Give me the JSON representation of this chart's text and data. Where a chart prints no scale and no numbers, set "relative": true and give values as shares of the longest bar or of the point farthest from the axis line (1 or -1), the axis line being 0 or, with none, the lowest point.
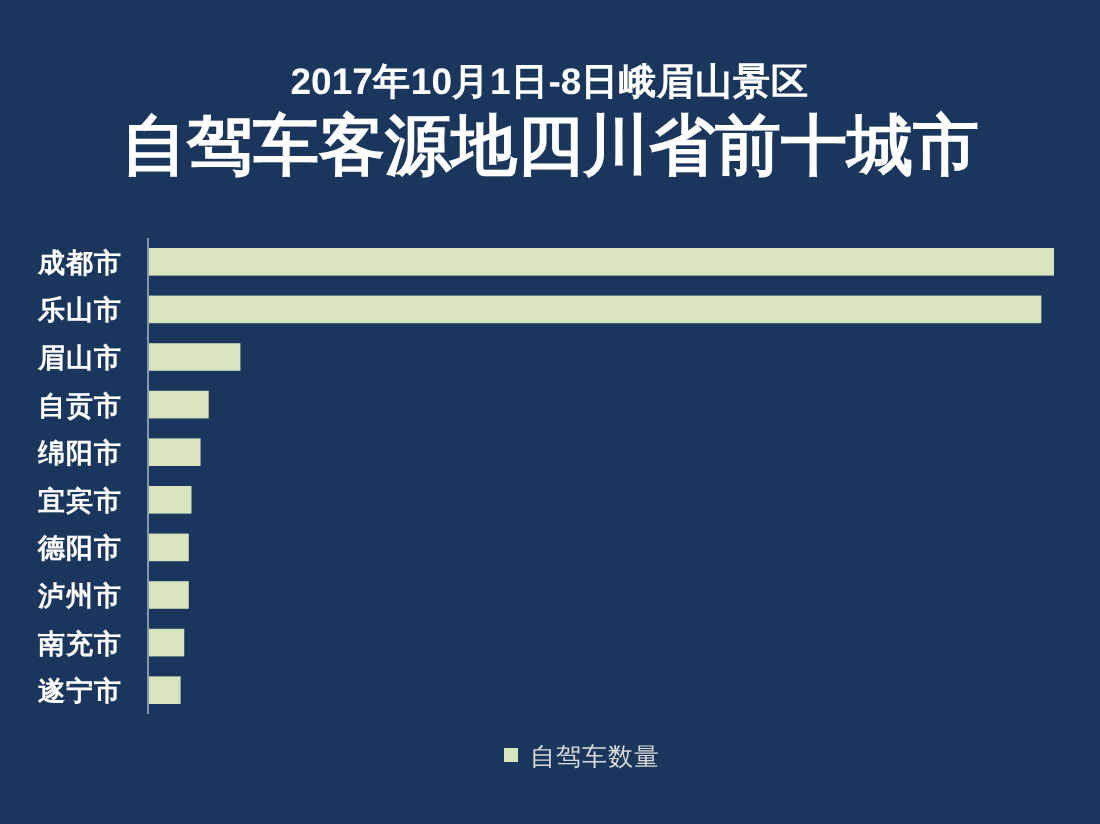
{
  "chart_data": {
    "type": "bar",
    "orientation": "horizontal",
    "relative": true,
    "subtitle": "2017年10月1日-8日峨眉山景区",
    "title": "自驾车客源地四川省前十城市",
    "categories": [
      "成都市",
      "乐山市",
      "眉山市",
      "自贡市",
      "绵阳市",
      "宜宾市",
      "德阳市",
      "泸州市",
      "南充市",
      "遂宁市"
    ],
    "series": [
      {
        "name": "自驾车数量",
        "color": "#d7e4bd",
        "values": [
          1,
          0.986,
          0.102,
          0.067,
          0.058,
          0.048,
          0.045,
          0.045,
          0.04,
          0.036
        ]
      }
    ],
    "legend": "bottom"
  }
}
